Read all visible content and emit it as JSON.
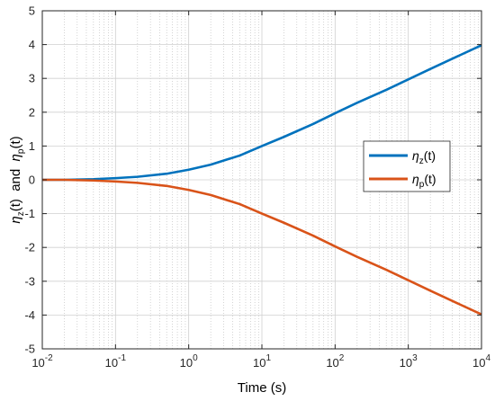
{
  "chart_data": {
    "type": "line",
    "xscale": "log",
    "xlim": [
      0.01,
      10000
    ],
    "ylim": [
      -5,
      5
    ],
    "grid": true,
    "xlabel": "Time (s)",
    "ylabel": {
      "eta1": "η",
      "sub1": "z",
      "mid": "(t)  and  ",
      "eta2": "η",
      "sub2": "p",
      "end": "(t)"
    },
    "xticks": [
      {
        "base": "10",
        "exp": "-2",
        "value": 0.01
      },
      {
        "base": "10",
        "exp": "-1",
        "value": 0.1
      },
      {
        "base": "10",
        "exp": "0",
        "value": 1
      },
      {
        "base": "10",
        "exp": "1",
        "value": 10
      },
      {
        "base": "10",
        "exp": "2",
        "value": 100
      },
      {
        "base": "10",
        "exp": "3",
        "value": 1000
      },
      {
        "base": "10",
        "exp": "4",
        "value": 10000
      }
    ],
    "yticks": [
      "5",
      "4",
      "3",
      "2",
      "1",
      "0",
      "-1",
      "-2",
      "-3",
      "-4",
      "-5"
    ],
    "legend_position": "right",
    "series": [
      {
        "name": {
          "sym": "η",
          "sub": "z",
          "tail": "(t)"
        },
        "color": "#0072bd",
        "x": [
          0.01,
          0.02,
          0.05,
          0.1,
          0.2,
          0.5,
          1,
          2,
          5,
          10,
          20,
          50,
          100,
          200,
          500,
          1000,
          2000,
          5000,
          10000
        ],
        "y": [
          0.0,
          0.0,
          0.02,
          0.05,
          0.09,
          0.18,
          0.3,
          0.45,
          0.72,
          1.0,
          1.27,
          1.65,
          1.97,
          2.28,
          2.66,
          2.97,
          3.28,
          3.68,
          3.98
        ]
      },
      {
        "name": {
          "sym": "η",
          "sub": "p",
          "tail": "(t)"
        },
        "color": "#d95319",
        "x": [
          0.01,
          0.02,
          0.05,
          0.1,
          0.2,
          0.5,
          1,
          2,
          5,
          10,
          20,
          50,
          100,
          200,
          500,
          1000,
          2000,
          5000,
          10000
        ],
        "y": [
          0.0,
          0.0,
          -0.02,
          -0.05,
          -0.09,
          -0.18,
          -0.3,
          -0.45,
          -0.72,
          -1.0,
          -1.27,
          -1.65,
          -1.97,
          -2.28,
          -2.66,
          -2.97,
          -3.28,
          -3.68,
          -3.98
        ]
      }
    ]
  }
}
